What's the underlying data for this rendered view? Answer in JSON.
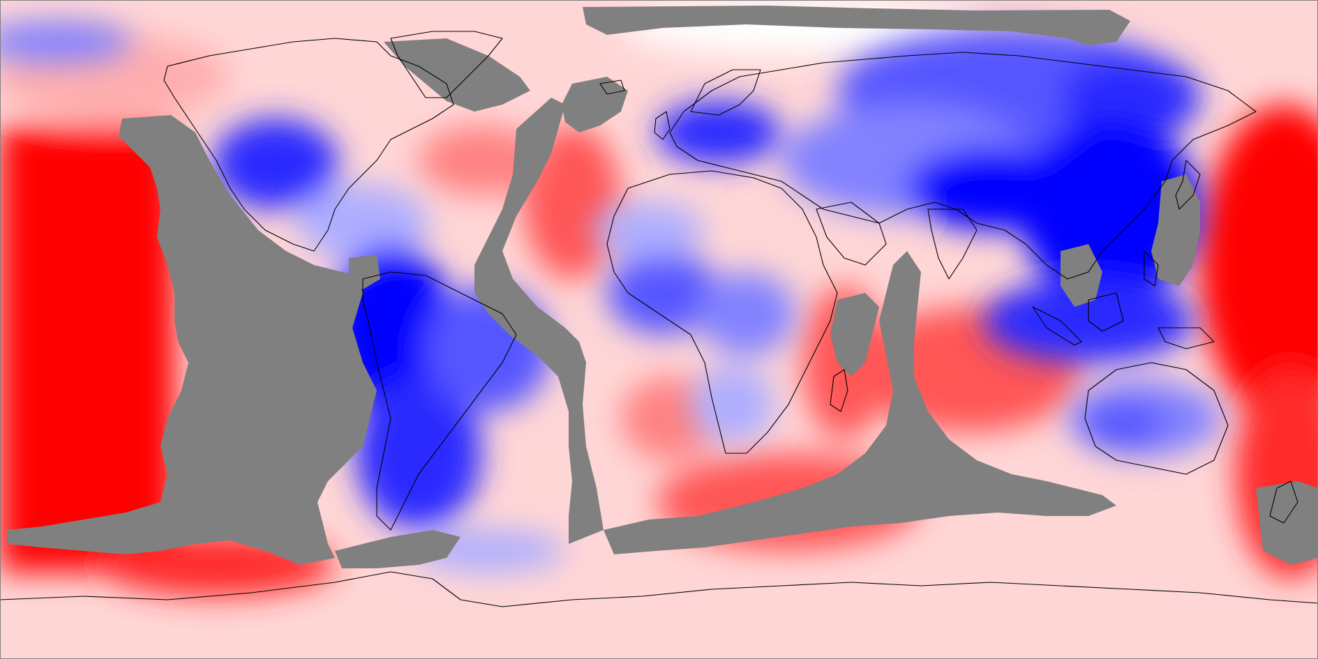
{
  "map": {
    "projection": "equirectangular",
    "colors": {
      "background": "#ffffff",
      "mask": "#808080",
      "coastline": "#000000",
      "palette": [
        "#0000ff",
        "#2a2aff",
        "#5656ff",
        "#8282ff",
        "#aeaeff",
        "#d6d6ff",
        "#ffffff",
        "#ffd6d6",
        "#ffaeae",
        "#ff8282",
        "#ff5656",
        "#ff2a2a",
        "#ff0000"
      ]
    }
  }
}
